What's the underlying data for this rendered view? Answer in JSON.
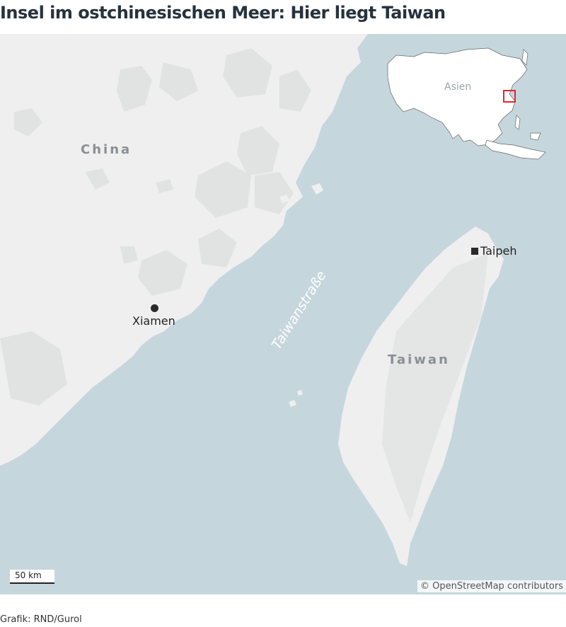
{
  "header": {
    "title": "Insel im ostchinesischen Meer: Hier liegt Taiwan"
  },
  "map": {
    "labels": {
      "china": "China",
      "taiwan": "Taiwan",
      "strait": "Taiwanstraße",
      "xiamen": "Xiamen",
      "taipei": "Taipeh"
    },
    "scale_bar": "50 km",
    "attribution": "© OpenStreetMap contributors",
    "inset": {
      "label": "Asien",
      "highlight_color": "#e3262e"
    },
    "colors": {
      "water": "#c6d6dd",
      "land": "#efefef",
      "relief": "#e1e3e2"
    }
  },
  "footer": {
    "credit": "Grafik: RND/Gurol"
  }
}
